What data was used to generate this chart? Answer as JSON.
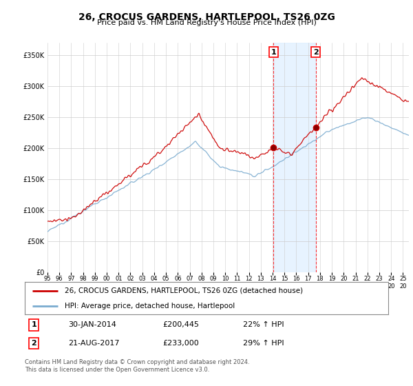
{
  "title": "26, CROCUS GARDENS, HARTLEPOOL, TS26 0ZG",
  "subtitle": "Price paid vs. HM Land Registry's House Price Index (HPI)",
  "legend_label_red": "26, CROCUS GARDENS, HARTLEPOOL, TS26 0ZG (detached house)",
  "legend_label_blue": "HPI: Average price, detached house, Hartlepool",
  "annotation1_date": "30-JAN-2014",
  "annotation1_price": "£200,445",
  "annotation1_hpi": "22% ↑ HPI",
  "annotation1_year": 2014.08,
  "annotation1_value": 200445,
  "annotation2_date": "21-AUG-2017",
  "annotation2_price": "£233,000",
  "annotation2_hpi": "29% ↑ HPI",
  "annotation2_year": 2017.64,
  "annotation2_value": 233000,
  "footer1": "Contains HM Land Registry data © Crown copyright and database right 2024.",
  "footer2": "This data is licensed under the Open Government Licence v3.0.",
  "ylim": [
    0,
    370000
  ],
  "xlim_start": 1995.0,
  "xlim_end": 2025.5,
  "plot_bg": "#ffffff",
  "red_color": "#cc0000",
  "blue_color": "#7aabcf",
  "shade_color": "#ddeeff"
}
